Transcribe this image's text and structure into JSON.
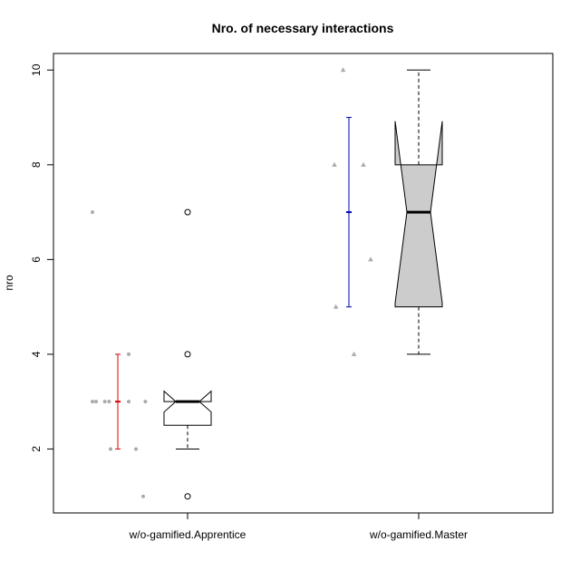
{
  "chart_data": {
    "type": "boxplot",
    "title": "Nro. of necessary interactions",
    "xlabel": "",
    "ylabel": "nro",
    "ylim": [
      0.65,
      10.35
    ],
    "y_ticks": [
      2,
      4,
      6,
      8,
      10
    ],
    "grid": false,
    "categories": [
      "w/o-gamified.Apprentice",
      "w/o-gamified.Master"
    ],
    "groups": [
      {
        "name": "w/o-gamified.Apprentice",
        "box": {
          "lower_whisker": 2,
          "q1": 2.5,
          "median": 3,
          "q3": 3,
          "upper_whisker": 3,
          "notch_low": 2.78,
          "notch_high": 3.22,
          "outliers": [
            7,
            4,
            1
          ],
          "fill": "#ffffff"
        },
        "points": [
          {
            "y": 7,
            "jitter": -0.35
          },
          {
            "y": 3,
            "jitter": -0.35
          },
          {
            "y": 3,
            "jitter": -0.3
          },
          {
            "y": 3,
            "jitter": -0.18
          },
          {
            "y": 3,
            "jitter": -0.12
          },
          {
            "y": 3,
            "jitter": 0.15
          },
          {
            "y": 3,
            "jitter": 0.38
          },
          {
            "y": 4,
            "jitter": 0.15
          },
          {
            "y": 2,
            "jitter": -0.1
          },
          {
            "y": 2,
            "jitter": 0.25
          },
          {
            "y": 1,
            "jitter": 0.35
          }
        ],
        "point_shape": "circle",
        "mean": 3,
        "sd_low": 2,
        "sd_high": 4,
        "sd_color": "#e00000"
      },
      {
        "name": "w/o-gamified.Master",
        "box": {
          "lower_whisker": 4,
          "q1": 5,
          "median": 7,
          "q3": 8,
          "upper_whisker": 10,
          "notch_low": 5.08,
          "notch_high": 8.92,
          "outliers": [],
          "fill": "#cccccc"
        },
        "points": [
          {
            "y": 10,
            "jitter": -0.08
          },
          {
            "y": 8,
            "jitter": -0.2
          },
          {
            "y": 8,
            "jitter": 0.2
          },
          {
            "y": 6,
            "jitter": 0.3
          },
          {
            "y": 5,
            "jitter": -0.18
          },
          {
            "y": 4,
            "jitter": 0.07
          }
        ],
        "point_shape": "triangle",
        "mean": 7,
        "sd_low": 5,
        "sd_high": 9,
        "sd_color": "#0000b0"
      }
    ]
  }
}
